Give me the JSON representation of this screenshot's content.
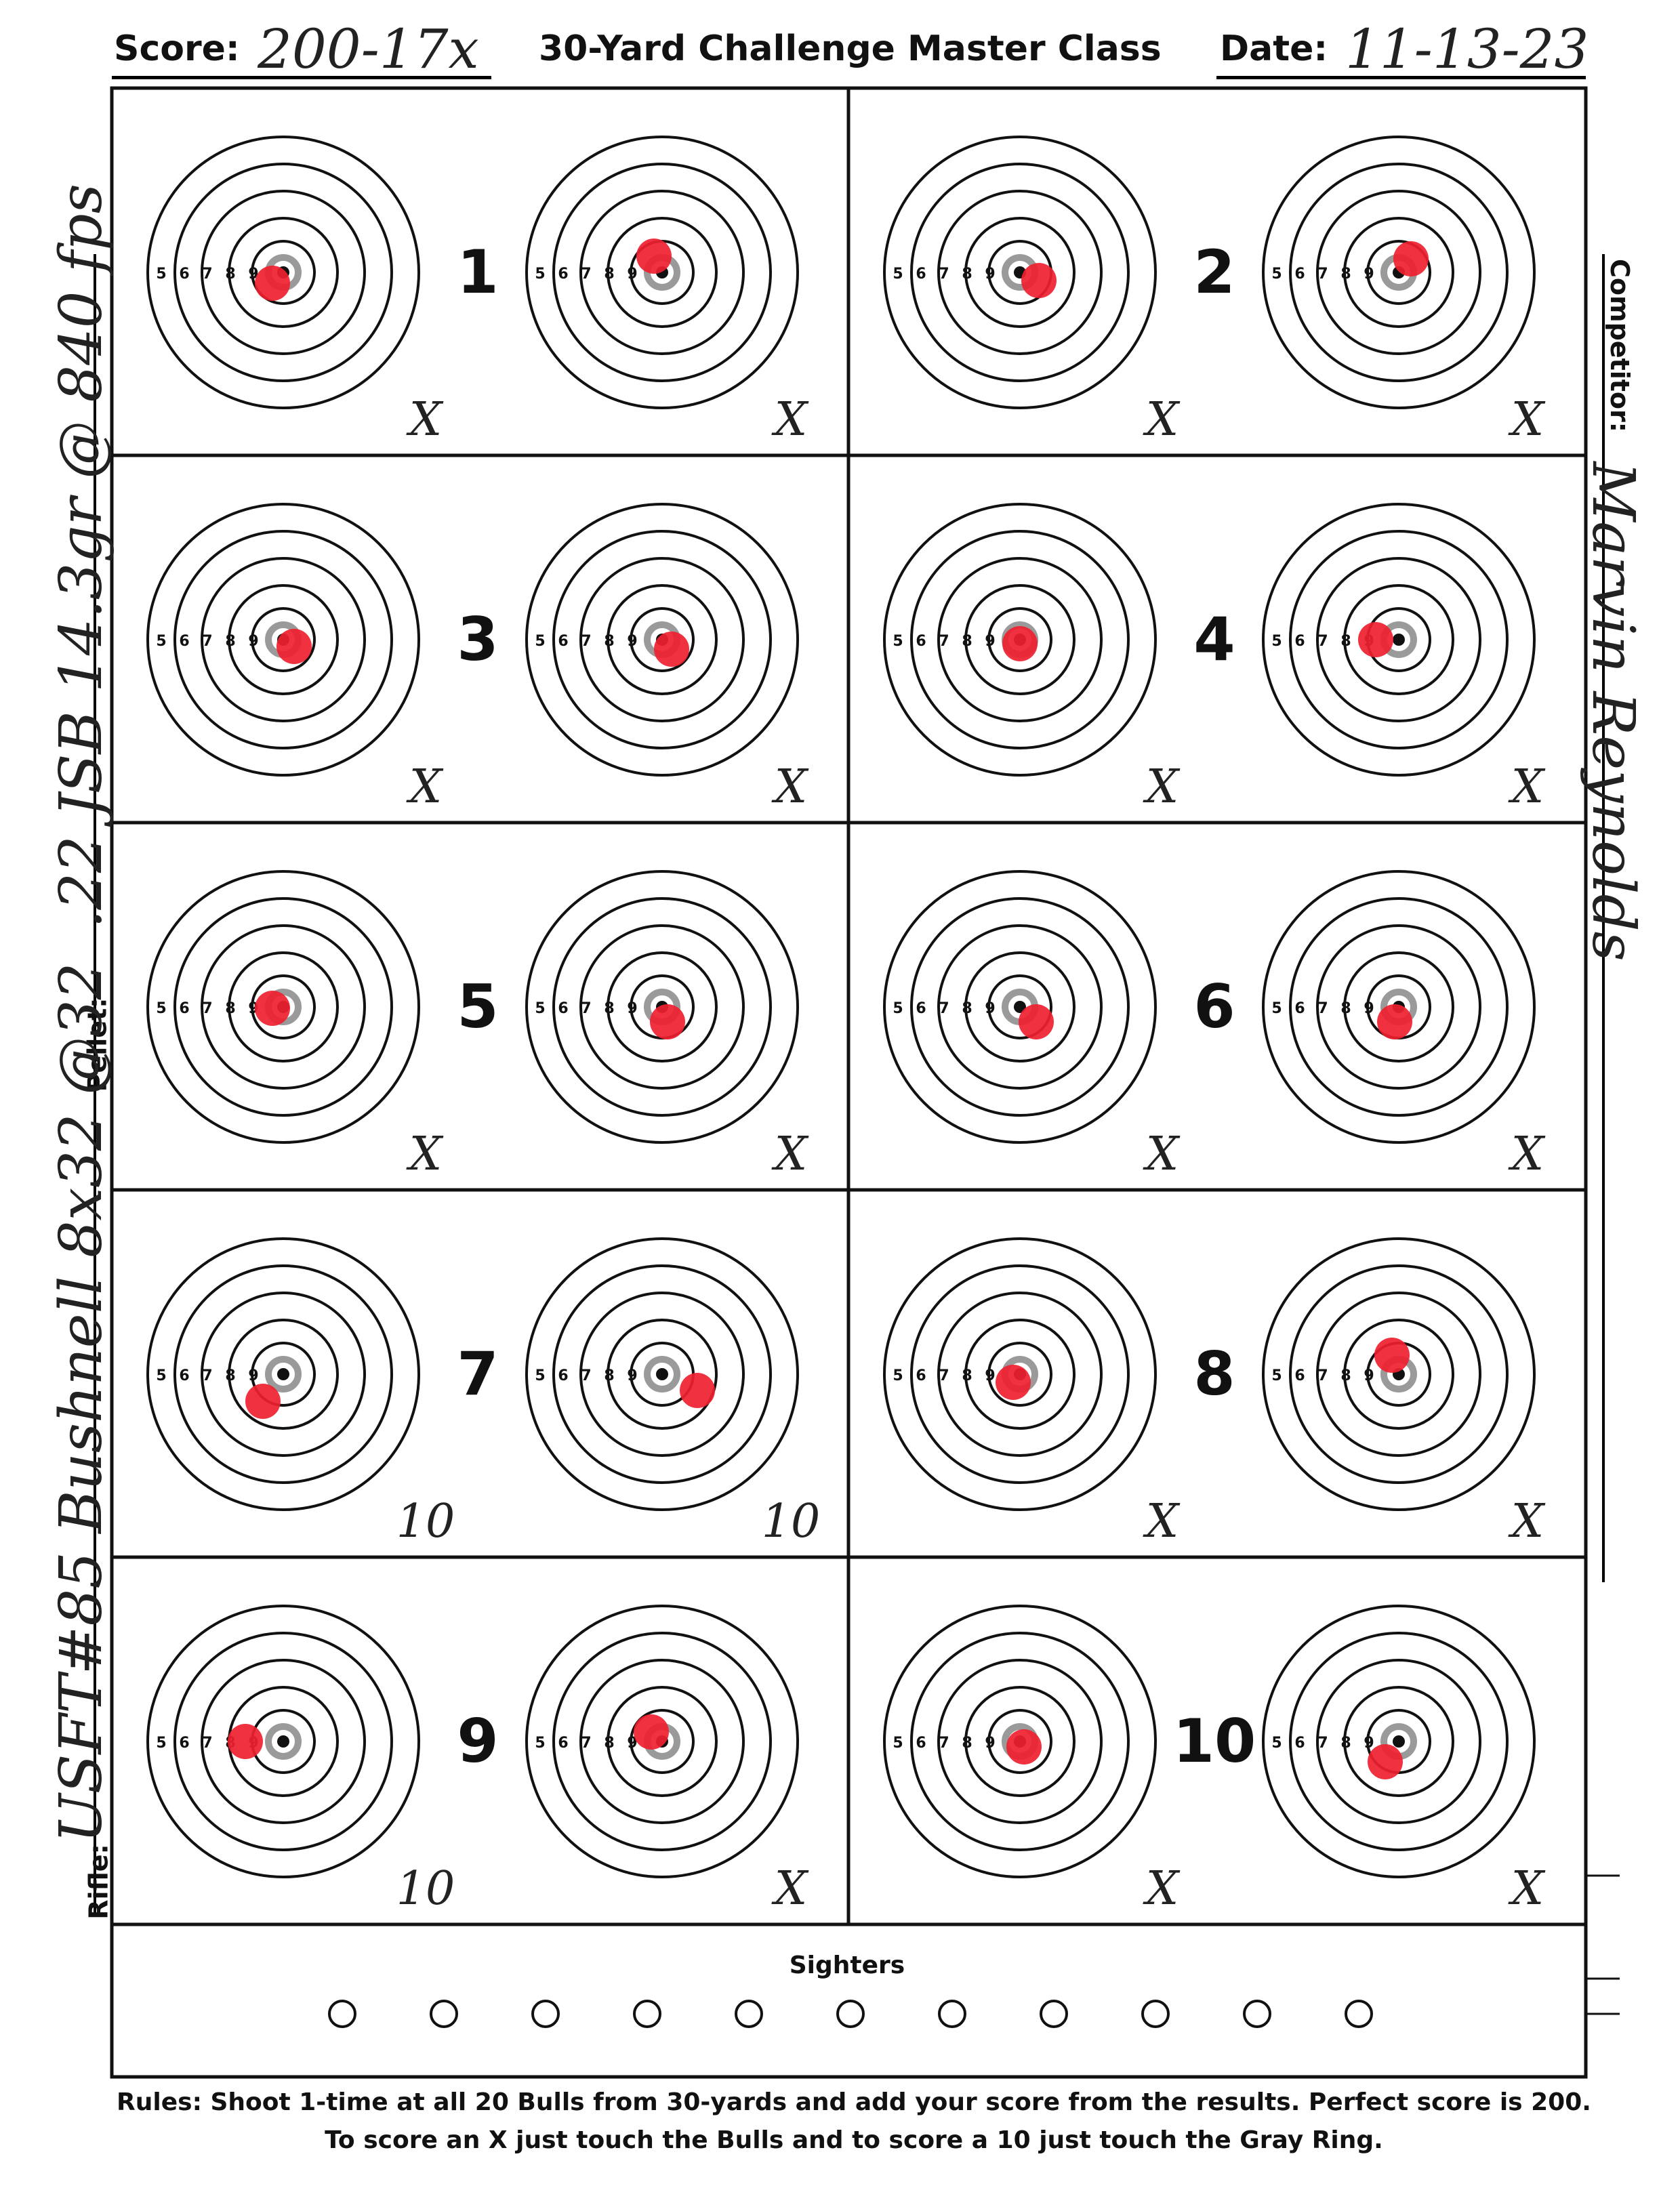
{
  "header": {
    "score_label": "Score:",
    "score_value": "200-17x",
    "title": "30-Yard Challenge Master Class",
    "date_label": "Date:",
    "date_value": "11-13-23"
  },
  "left_margin": {
    "pellet_label": "Pellet:",
    "rifle_label": "Rifle:",
    "pellet_handwritten": ".22 JSB 14.3gr @ 840 fps",
    "rifle_handwritten": "USFT#85 Bushnell 8x32 @32"
  },
  "right_margin": {
    "competitor_label": "Competitor:",
    "competitor_handwritten": "Marvin Reynolds"
  },
  "ring_numbers": [
    "5",
    "6",
    "7",
    "8",
    "9"
  ],
  "bulls": [
    {
      "number": "1",
      "left_score": "X",
      "right_score": "X"
    },
    {
      "number": "2",
      "left_score": "X",
      "right_score": "X"
    },
    {
      "number": "3",
      "left_score": "X",
      "right_score": "X"
    },
    {
      "number": "4",
      "left_score": "X",
      "right_score": "X"
    },
    {
      "number": "5",
      "left_score": "X",
      "right_score": "X"
    },
    {
      "number": "6",
      "left_score": "X",
      "right_score": "X"
    },
    {
      "number": "7",
      "left_score": "10",
      "right_score": "10"
    },
    {
      "number": "8",
      "left_score": "X",
      "right_score": "X"
    },
    {
      "number": "9",
      "left_score": "10",
      "right_score": "X"
    },
    {
      "number": "10",
      "left_score": "X",
      "right_score": "X"
    }
  ],
  "sighters": {
    "label": "Sighters",
    "count": 11
  },
  "rules": {
    "line1": "Rules: Shoot 1-time at all 20 Bulls from 30-yards and add your score from the results. Perfect score is 200.",
    "line2": "To score an X just touch the Bulls and to score a 10 just touch the Gray Ring."
  },
  "colors": {
    "ink": "#111111",
    "hit": "#ee2030",
    "gray_ring": "#9a9a9a",
    "paper": "#ffffff"
  }
}
